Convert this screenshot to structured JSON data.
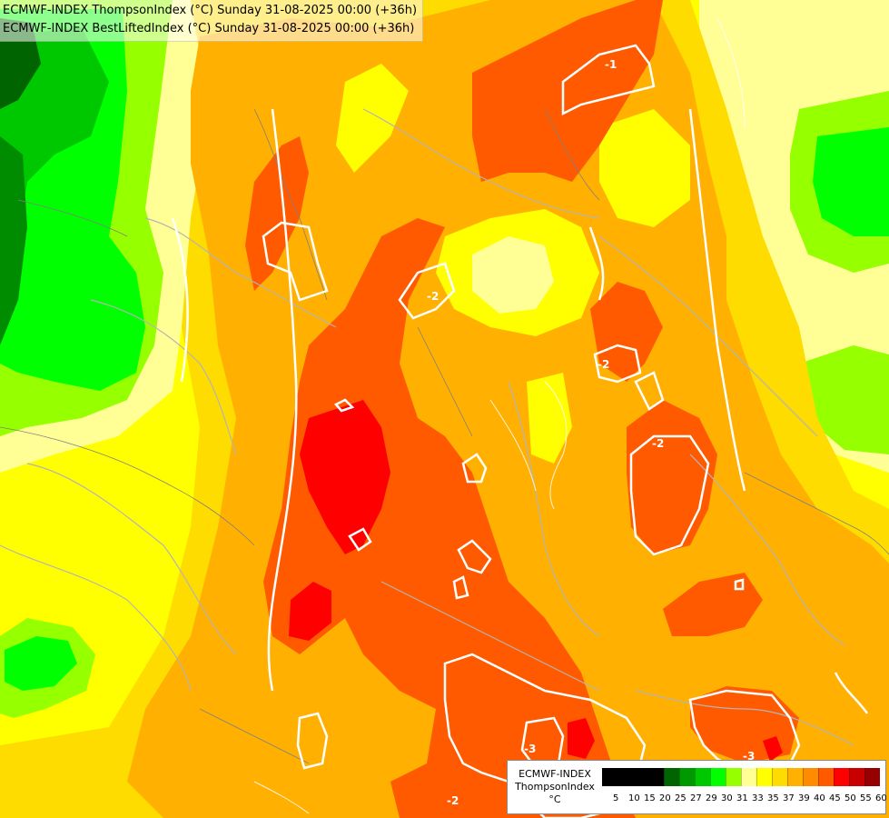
{
  "header": {
    "line1": "ECMWF-INDEX ThompsonIndex (°C) Sunday 31-08-2025 00:00 (+36h)",
    "line2": "ECMWF-INDEX BestLiftedIndex (°C) Sunday 31-08-2025 00:00 (+36h)"
  },
  "legend": {
    "model": "ECMWF-INDEX",
    "parameter": "ThompsonIndex",
    "unit": "°C",
    "colors": [
      "#000000",
      "#000000",
      "#000000",
      "#000000",
      "#006400",
      "#009a00",
      "#00c800",
      "#00ff00",
      "#96ff00",
      "#ffff96",
      "#ffff00",
      "#ffdc00",
      "#ffb000",
      "#ff8c00",
      "#ff5a00",
      "#ff0000",
      "#c80000",
      "#960000",
      "#ff00ff",
      "#c800ff",
      "#9600ff",
      "#6400ff",
      "#0000ff"
    ],
    "ticks": [
      "5",
      "10",
      "15",
      "20",
      "25",
      "27",
      "29",
      "30",
      "31",
      "33",
      "35",
      "37",
      "39",
      "40",
      "45",
      "50",
      "55",
      "60"
    ]
  },
  "map": {
    "contour_labels": [
      "-1",
      "-2",
      "-2",
      "-2",
      "-3",
      "-3",
      "-2"
    ],
    "palette": {
      "dark_green": "#006400",
      "green": "#00c800",
      "lime": "#00ff00",
      "yellow_green": "#96ff00",
      "pale_yellow": "#ffff96",
      "yellow": "#ffff00",
      "gold": "#ffdc00",
      "orange": "#ffb000",
      "dark_orange": "#ff8c00",
      "red_orange": "#ff5a00",
      "red": "#ff0000"
    }
  }
}
